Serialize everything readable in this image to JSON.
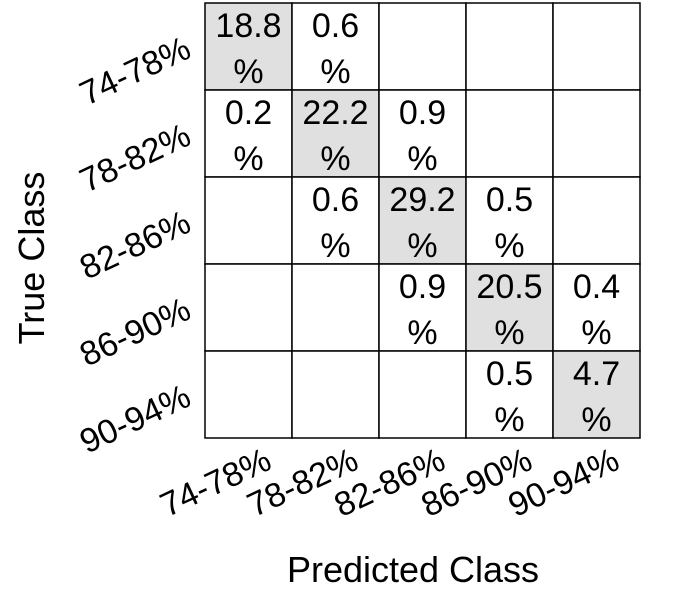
{
  "chart_data": {
    "type": "heatmap",
    "xlabel": "Predicted Class",
    "ylabel": "True Class",
    "x_categories": [
      "74-78%",
      "78-82%",
      "82-86%",
      "86-90%",
      "90-94%"
    ],
    "y_categories": [
      "74-78%",
      "78-82%",
      "82-86%",
      "86-90%",
      "90-94%"
    ],
    "unit": "%",
    "values": [
      [
        "18.8",
        "0.6",
        null,
        null,
        null
      ],
      [
        "0.2",
        "22.2",
        "0.9",
        null,
        null
      ],
      [
        null,
        "0.6",
        "29.2",
        "0.5",
        null
      ],
      [
        null,
        null,
        "0.9",
        "20.5",
        "0.4"
      ],
      [
        null,
        null,
        null,
        "0.5",
        "4.7"
      ]
    ],
    "highlight_color": "#e0e0e0",
    "grid_color": "#000000"
  }
}
